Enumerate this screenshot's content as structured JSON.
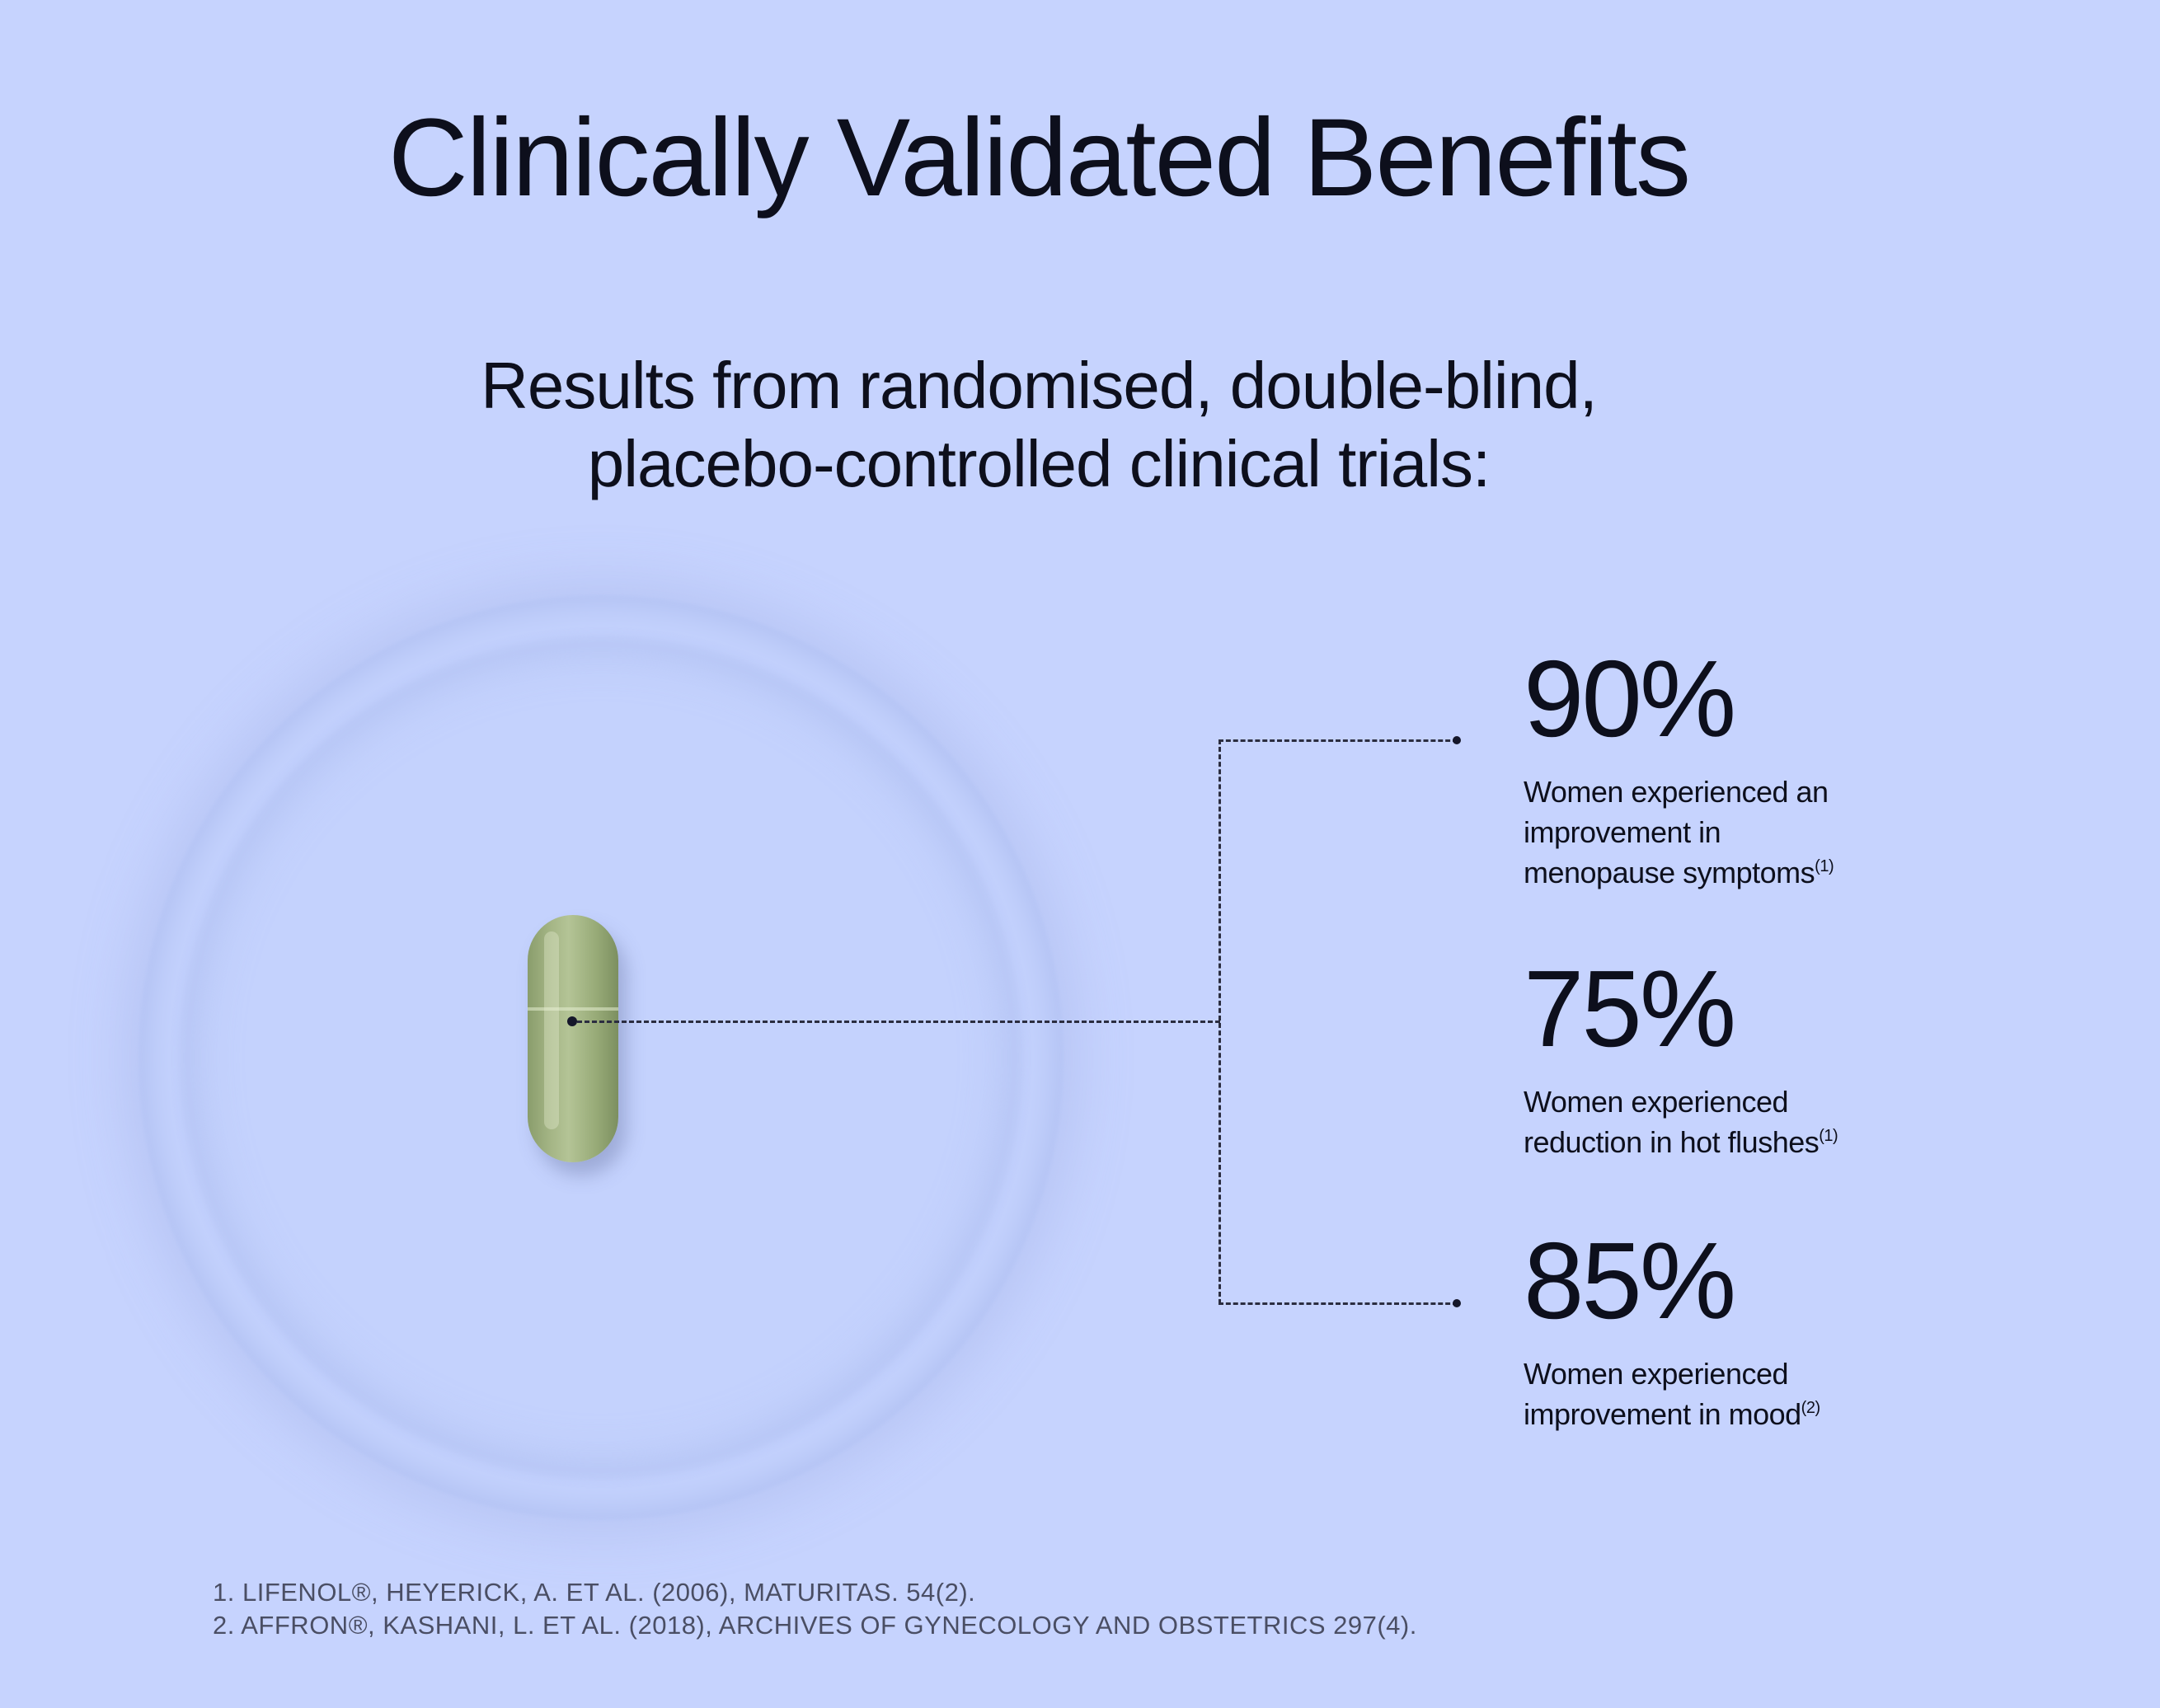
{
  "title": "Clinically Validated Benefits",
  "subtitle": {
    "line1": "Results from randomised, double-blind,",
    "line2": "placebo-controlled clinical trials:"
  },
  "stats": [
    {
      "value": "90%",
      "lines": [
        "Women experienced an",
        "improvement in",
        "menopause symptoms"
      ],
      "ref": "(1)"
    },
    {
      "value": "75%",
      "lines": [
        "Women experienced",
        "reduction in hot flushes"
      ],
      "ref": "(1)"
    },
    {
      "value": "85%",
      "lines": [
        "Women experienced",
        "improvement in mood"
      ],
      "ref": "(2)"
    }
  ],
  "footnotes": [
    "1. LIFENOL®, HEYERICK, A. ET AL. (2006), MATURITAS. 54(2).",
    "2. AFFRON®, KASHANI, L. ET AL. (2018), ARCHIVES OF GYNECOLOGY AND OBSTETRICS 297(4)."
  ],
  "colors": {
    "background": "#c6d3fe",
    "text": "#0d0f1c",
    "capsule": "#a4b585"
  },
  "icons": {
    "capsule": "capsule-image"
  }
}
